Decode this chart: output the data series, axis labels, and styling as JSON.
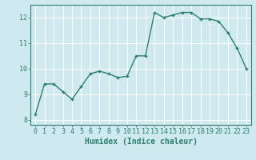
{
  "x": [
    0,
    1,
    2,
    3,
    4,
    5,
    6,
    7,
    8,
    9,
    10,
    11,
    12,
    13,
    14,
    15,
    16,
    17,
    18,
    19,
    20,
    21,
    22,
    23
  ],
  "y": [
    8.2,
    9.4,
    9.4,
    9.1,
    8.8,
    9.3,
    9.8,
    9.9,
    9.8,
    9.65,
    9.7,
    10.5,
    10.5,
    12.2,
    12.0,
    12.1,
    12.2,
    12.2,
    11.95,
    11.95,
    11.85,
    11.4,
    10.8,
    10.0
  ],
  "line_color": "#2e7d6e",
  "marker": "+",
  "marker_size": 3.5,
  "linewidth": 1.0,
  "xlabel": "Humidex (Indice chaleur)",
  "xlabel_fontsize": 7,
  "xlim": [
    -0.5,
    23.5
  ],
  "ylim": [
    7.8,
    12.5
  ],
  "yticks": [
    8,
    9,
    10,
    11,
    12
  ],
  "xticks": [
    0,
    1,
    2,
    3,
    4,
    5,
    6,
    7,
    8,
    9,
    10,
    11,
    12,
    13,
    14,
    15,
    16,
    17,
    18,
    19,
    20,
    21,
    22,
    23
  ],
  "bg_color": "#ceeaf0",
  "grid_color": "#ffffff",
  "axes_color": "#2e7d6e",
  "tick_color": "#2e7d6e",
  "tick_label_color": "#2e7d6e",
  "tick_fontsize": 6,
  "tick_fontfamily": "monospace"
}
